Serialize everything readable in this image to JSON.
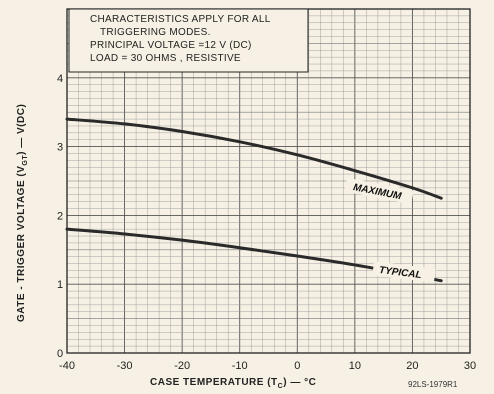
{
  "chart_data": {
    "type": "line",
    "title": "",
    "xlabel": "CASE TEMPERATURE (T",
    "xlabel_sub": "C",
    "xlabel_suffix": ") — °C",
    "ylabel": "GATE - TRIGGER VOLTAGE (V",
    "ylabel_sub": "GT",
    "ylabel_suffix": ") — V(DC)",
    "xlim": [
      -40,
      30
    ],
    "ylim": [
      0,
      5
    ],
    "x_ticks": [
      -40,
      -30,
      -20,
      -10,
      0,
      10,
      20,
      30
    ],
    "y_ticks": [
      0,
      1,
      2,
      3,
      4
    ],
    "grid": true,
    "notes": [
      "CHARACTERISTICS APPLY FOR ALL",
      "TRIGGERING MODES.",
      "PRINCIPAL VOLTAGE =12 V (DC)",
      "LOAD = 30 OHMS , RESISTIVE"
    ],
    "series": [
      {
        "name": "MAXIMUM",
        "x": [
          -40,
          -30,
          -20,
          -10,
          0,
          10,
          20,
          25
        ],
        "y": [
          3.4,
          3.33,
          3.22,
          3.07,
          2.88,
          2.65,
          2.4,
          2.25
        ]
      },
      {
        "name": "TYPICAL",
        "x": [
          -40,
          -30,
          -20,
          -10,
          0,
          10,
          20,
          25
        ],
        "y": [
          1.8,
          1.73,
          1.64,
          1.53,
          1.41,
          1.28,
          1.13,
          1.05
        ]
      }
    ],
    "figure_code": "92LS-1979R1"
  }
}
